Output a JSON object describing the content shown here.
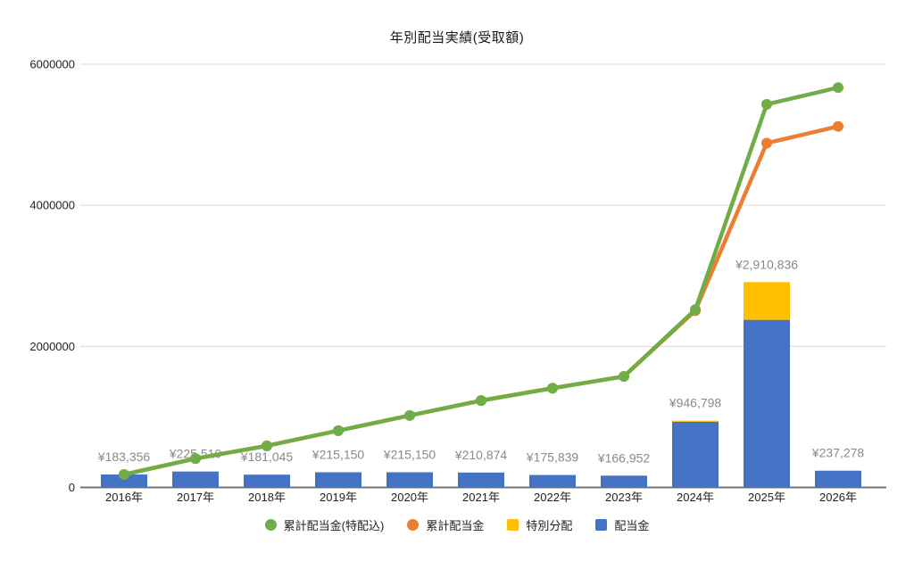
{
  "chart_data": {
    "type": "combo-stacked-bar-line",
    "title": "年別配当実績(受取額)",
    "categories": [
      "2016年",
      "2017年",
      "2018年",
      "2019年",
      "2020年",
      "2021年",
      "2022年",
      "2023年",
      "2024年",
      "2025年",
      "2026年"
    ],
    "bar_series": [
      {
        "name": "配当金",
        "color": "#4472C4",
        "values": [
          183356,
          225510,
          181045,
          215150,
          215150,
          210874,
          175839,
          166952,
          931798,
          2375836,
          237278
        ]
      },
      {
        "name": "特別分配",
        "color": "#FFC000",
        "values": [
          0,
          0,
          0,
          0,
          0,
          0,
          0,
          0,
          15000,
          535000,
          0
        ]
      }
    ],
    "line_series": [
      {
        "name": "累計配当金",
        "color": "#ED7D31",
        "values": [
          183356,
          408866,
          589911,
          805061,
          1020211,
          1231085,
          1406924,
          1573876,
          2505674,
          4881510,
          5118788
        ]
      },
      {
        "name": "累計配当金(特配込)",
        "color": "#70AD47",
        "values": [
          183356,
          408866,
          589911,
          805061,
          1020211,
          1231085,
          1406924,
          1573876,
          2520674,
          5431510,
          5668788
        ]
      }
    ],
    "bar_total_labels": [
      "¥183,356",
      "¥225,510",
      "¥181,045",
      "¥215,150",
      "¥215,150",
      "¥210,874",
      "¥175,839",
      "¥166,952",
      "¥946,798",
      "¥2,910,836",
      "¥237,278"
    ],
    "y_axis": {
      "min": 0,
      "max": 6000000,
      "ticks": [
        0,
        2000000,
        4000000,
        6000000
      ],
      "tick_labels": [
        "0",
        "2000000",
        "4000000",
        "6000000"
      ],
      "grid": true
    },
    "legend": {
      "position": "bottom",
      "items": [
        {
          "label": "累計配当金(特配込)",
          "color": "#70AD47",
          "shape": "circle"
        },
        {
          "label": "累計配当金",
          "color": "#ED7D31",
          "shape": "circle"
        },
        {
          "label": "特別分配",
          "color": "#FFC000",
          "shape": "square"
        },
        {
          "label": "配当金",
          "color": "#4472C4",
          "shape": "square"
        }
      ]
    },
    "colors": {
      "grid": "#dadada",
      "axis": "#757575",
      "data_label": "#8a8a8a",
      "tick_label": "#222222",
      "title": "#1a1a1a"
    }
  }
}
